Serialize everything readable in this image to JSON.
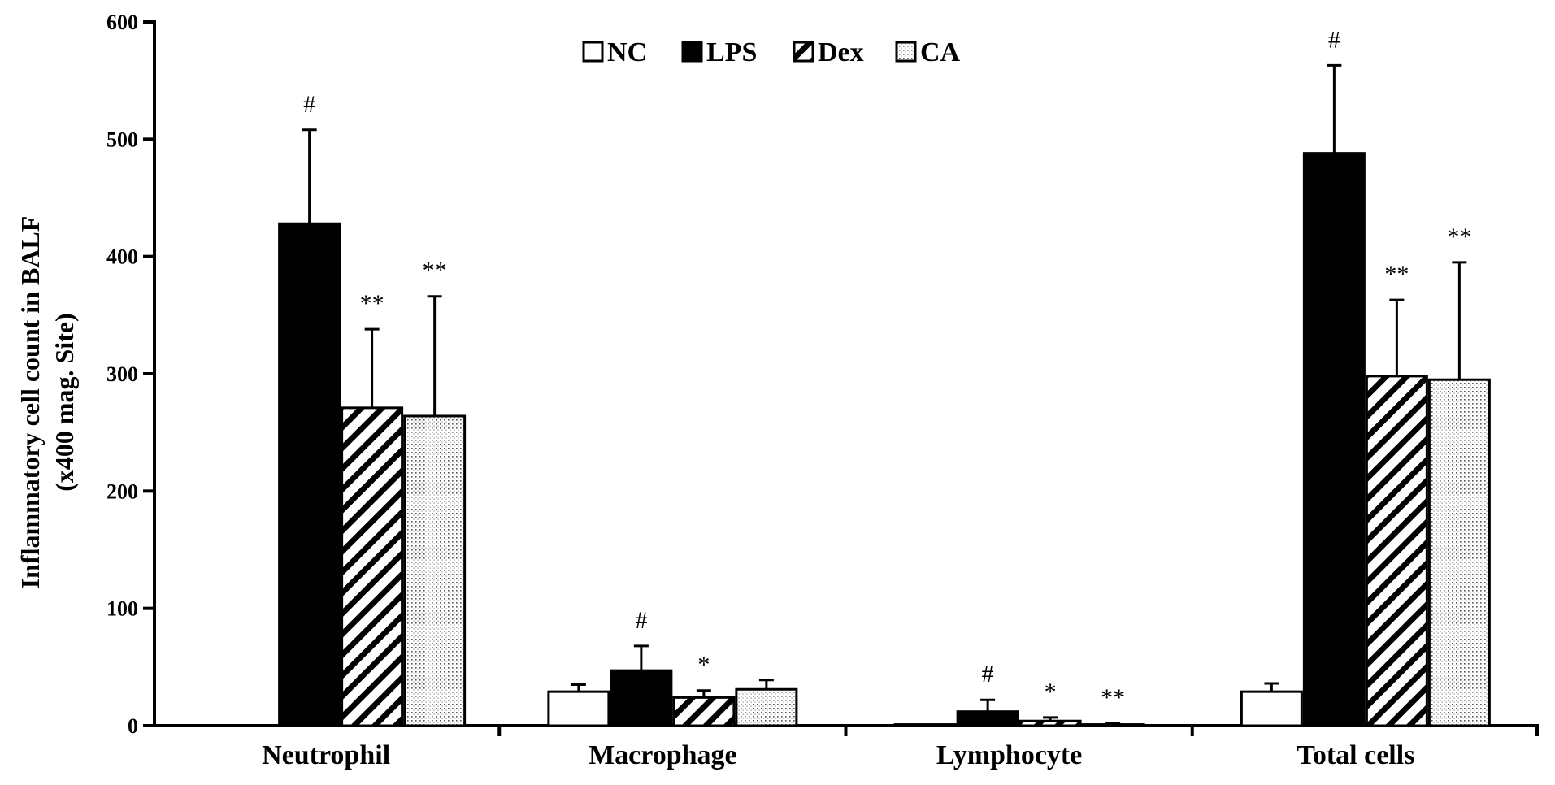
{
  "chart_data": {
    "type": "bar",
    "title": "",
    "xlabel": "",
    "ylabel": [
      "Inflammatory cell count in BALF",
      "(x400 mag. Site)"
    ],
    "ylim": [
      0,
      600
    ],
    "yticks": [
      0,
      100,
      200,
      300,
      400,
      500,
      600
    ],
    "categories": [
      "Neutrophil",
      "Macrophage",
      "Lymphocyte",
      "Total cells"
    ],
    "legend_position": "top-center",
    "grid": false,
    "series": [
      {
        "name": "NC",
        "pattern": "white",
        "values": [
          0,
          29,
          1,
          29
        ],
        "errors": [
          0,
          6,
          0,
          7
        ],
        "annotations": [
          "",
          "",
          "",
          ""
        ]
      },
      {
        "name": "LPS",
        "pattern": "black",
        "values": [
          428,
          47,
          12,
          488
        ],
        "errors": [
          80,
          21,
          10,
          75
        ],
        "annotations": [
          "#",
          "#",
          "#",
          "#"
        ]
      },
      {
        "name": "Dex",
        "pattern": "hatch",
        "values": [
          271,
          24,
          4,
          298
        ],
        "errors": [
          67,
          6,
          3,
          65
        ],
        "annotations": [
          "**",
          "*",
          "*",
          "**"
        ]
      },
      {
        "name": "CA",
        "pattern": "dots",
        "values": [
          264,
          31,
          1,
          295
        ],
        "errors": [
          102,
          8,
          1,
          100
        ],
        "annotations": [
          "**",
          "",
          "**",
          "**"
        ]
      }
    ],
    "colors": {
      "axis": "#000000",
      "fill_white": "#ffffff",
      "fill_black": "#000000"
    }
  }
}
